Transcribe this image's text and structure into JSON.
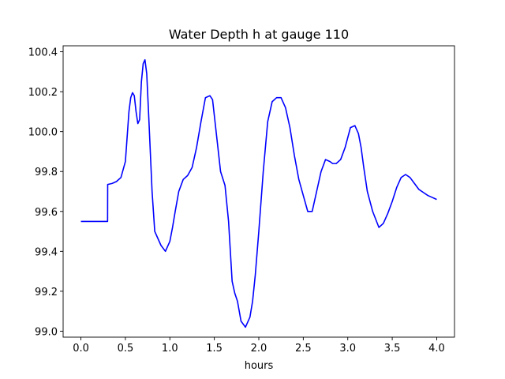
{
  "chart_data": {
    "type": "line",
    "title": "Water Depth h at gauge 110",
    "xlabel": "hours",
    "ylabel": "",
    "xlim": [
      -0.2,
      4.2
    ],
    "ylim": [
      98.97,
      100.43
    ],
    "xticks": [
      0.0,
      0.5,
      1.0,
      1.5,
      2.0,
      2.5,
      3.0,
      3.5,
      4.0
    ],
    "xtick_labels": [
      "0.0",
      "0.5",
      "1.0",
      "1.5",
      "2.0",
      "2.5",
      "3.0",
      "3.5",
      "4.0"
    ],
    "yticks": [
      99.0,
      99.2,
      99.4,
      99.6,
      99.8,
      100.0,
      100.2,
      100.4
    ],
    "ytick_labels": [
      "99.0",
      "99.2",
      "99.4",
      "99.6",
      "99.8",
      "100.0",
      "100.2",
      "100.4"
    ],
    "grid": false,
    "series": [
      {
        "name": "h",
        "color": "#0000ff",
        "x": [
          0.0,
          0.3,
          0.301,
          0.35,
          0.4,
          0.45,
          0.5,
          0.54,
          0.56,
          0.58,
          0.6,
          0.62,
          0.64,
          0.66,
          0.68,
          0.7,
          0.72,
          0.74,
          0.76,
          0.78,
          0.8,
          0.83,
          0.86,
          0.9,
          0.95,
          1.0,
          1.03,
          1.06,
          1.1,
          1.15,
          1.2,
          1.25,
          1.3,
          1.35,
          1.4,
          1.45,
          1.48,
          1.5,
          1.53,
          1.57,
          1.62,
          1.66,
          1.7,
          1.73,
          1.76,
          1.8,
          1.85,
          1.9,
          1.93,
          1.96,
          2.0,
          2.05,
          2.1,
          2.15,
          2.2,
          2.25,
          2.3,
          2.35,
          2.4,
          2.45,
          2.5,
          2.55,
          2.6,
          2.65,
          2.7,
          2.75,
          2.8,
          2.83,
          2.87,
          2.92,
          2.97,
          3.03,
          3.08,
          3.12,
          3.15,
          3.18,
          3.22,
          3.28,
          3.35,
          3.4,
          3.45,
          3.5,
          3.55,
          3.6,
          3.65,
          3.7,
          3.75,
          3.8,
          3.85,
          3.9,
          3.95,
          4.0
        ],
        "y": [
          99.55,
          99.55,
          99.735,
          99.74,
          99.75,
          99.77,
          99.85,
          100.1,
          100.17,
          100.195,
          100.18,
          100.1,
          100.04,
          100.06,
          100.25,
          100.34,
          100.36,
          100.29,
          100.1,
          99.9,
          99.7,
          99.5,
          99.47,
          99.43,
          99.4,
          99.45,
          99.52,
          99.6,
          99.7,
          99.76,
          99.78,
          99.82,
          99.92,
          100.05,
          100.17,
          100.18,
          100.16,
          100.08,
          99.96,
          99.8,
          99.73,
          99.55,
          99.25,
          99.19,
          99.15,
          99.05,
          99.02,
          99.07,
          99.15,
          99.28,
          99.5,
          99.8,
          100.05,
          100.15,
          100.17,
          100.17,
          100.12,
          100.02,
          99.88,
          99.76,
          99.68,
          99.6,
          99.6,
          99.7,
          99.8,
          99.86,
          99.85,
          99.84,
          99.84,
          99.86,
          99.92,
          100.02,
          100.03,
          99.99,
          99.92,
          99.82,
          99.7,
          99.6,
          99.52,
          99.54,
          99.59,
          99.65,
          99.72,
          99.77,
          99.785,
          99.77,
          99.74,
          99.71,
          99.695,
          99.68,
          99.67,
          99.66
        ]
      }
    ]
  }
}
